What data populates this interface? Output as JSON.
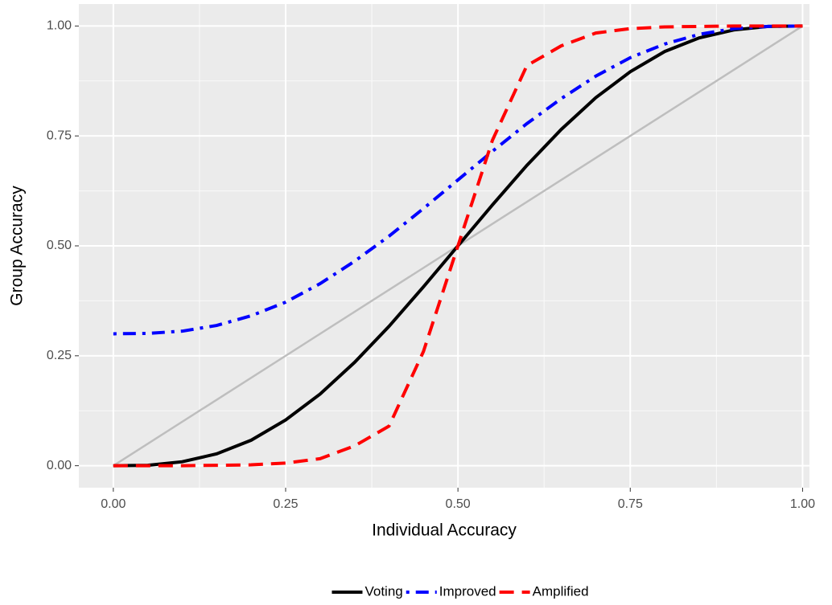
{
  "chart_data": {
    "type": "line",
    "x_label": "Individual Accuracy",
    "y_label": "Group Accuracy",
    "x": [
      0,
      0.05,
      0.1,
      0.15,
      0.2,
      0.25,
      0.3,
      0.35,
      0.4,
      0.45,
      0.5,
      0.55,
      0.6,
      0.65,
      0.7,
      0.75,
      0.8,
      0.85,
      0.9,
      0.95,
      1
    ],
    "series": [
      {
        "name": "Voting",
        "color": "#000000",
        "dash": "solid",
        "values": [
          0,
          0.001,
          0.009,
          0.027,
          0.058,
          0.104,
          0.163,
          0.235,
          0.317,
          0.407,
          0.5,
          0.593,
          0.683,
          0.765,
          0.837,
          0.896,
          0.942,
          0.973,
          0.991,
          0.999,
          1
        ]
      },
      {
        "name": "Improved",
        "color": "#0000ff",
        "dash": "dotdash",
        "values": [
          0.3,
          0.301,
          0.306,
          0.319,
          0.341,
          0.372,
          0.414,
          0.465,
          0.522,
          0.585,
          0.65,
          0.715,
          0.778,
          0.835,
          0.886,
          0.928,
          0.959,
          0.981,
          0.994,
          0.999,
          1
        ]
      },
      {
        "name": "Amplified",
        "color": "#ff0000",
        "dash": "dashed",
        "values": [
          0,
          0,
          0,
          0.001,
          0.002,
          0.006,
          0.016,
          0.045,
          0.09,
          0.26,
          0.5,
          0.74,
          0.91,
          0.955,
          0.984,
          0.994,
          0.998,
          0.999,
          1,
          1,
          1
        ]
      }
    ],
    "reference_line": {
      "x": [
        0,
        1
      ],
      "values": [
        0,
        1
      ],
      "color": "#bebebe"
    },
    "xlim": [
      -0.05,
      1.01
    ],
    "ylim": [
      -0.05,
      1.05
    ],
    "xticks": [
      {
        "value": 0,
        "label": "0.00"
      },
      {
        "value": 0.25,
        "label": "0.25"
      },
      {
        "value": 0.5,
        "label": "0.50"
      },
      {
        "value": 0.75,
        "label": "0.75"
      },
      {
        "value": 1,
        "label": "1.00"
      }
    ],
    "yticks": [
      {
        "value": 0,
        "label": "0.00"
      },
      {
        "value": 0.25,
        "label": "0.25"
      },
      {
        "value": 0.5,
        "label": "0.50"
      },
      {
        "value": 0.75,
        "label": "0.75"
      },
      {
        "value": 1,
        "label": "1.00"
      }
    ],
    "grid": true,
    "legend_position": "bottom"
  }
}
